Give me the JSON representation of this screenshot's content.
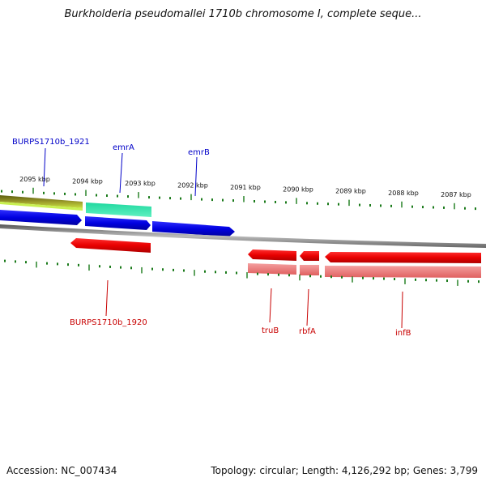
{
  "title": "Burkholderia pseudomallei 1710b chromosome I, complete seque...",
  "footer": {
    "accession": "Accession: NC_007434",
    "info": "Topology: circular; Length: 4,126,292 bp; Genes: 3,799"
  },
  "ruler_labels": [
    "2095 kbp",
    "2094 kbp",
    "2093 kbp",
    "2092 kbp",
    "2091 kbp",
    "2090 kbp",
    "2089 kbp",
    "2088 kbp",
    "2087 kbp"
  ],
  "gene_labels": {
    "forward": [
      {
        "name": "BURPS1710b_1921",
        "color": "#0000c8"
      },
      {
        "name": "emrA",
        "color": "#0000c8"
      },
      {
        "name": "emrB",
        "color": "#0000c8"
      }
    ],
    "reverse": [
      {
        "name": "BURPS1710b_1920",
        "color": "#c80000"
      },
      {
        "name": "truB",
        "color": "#c80000"
      },
      {
        "name": "rbfA",
        "color": "#c80000"
      },
      {
        "name": "infB",
        "color": "#c80000"
      }
    ]
  },
  "colors": {
    "forward_gene": "#0a0ae6",
    "reverse_gene": "#ee0000",
    "reverse_gene_light": "#f08080",
    "tick": "#1a7a1a",
    "backbone": "#888888",
    "track_olive": "#7a7a1a",
    "track_lime": "#c8f050",
    "track_aqua": "#30e8a8"
  }
}
